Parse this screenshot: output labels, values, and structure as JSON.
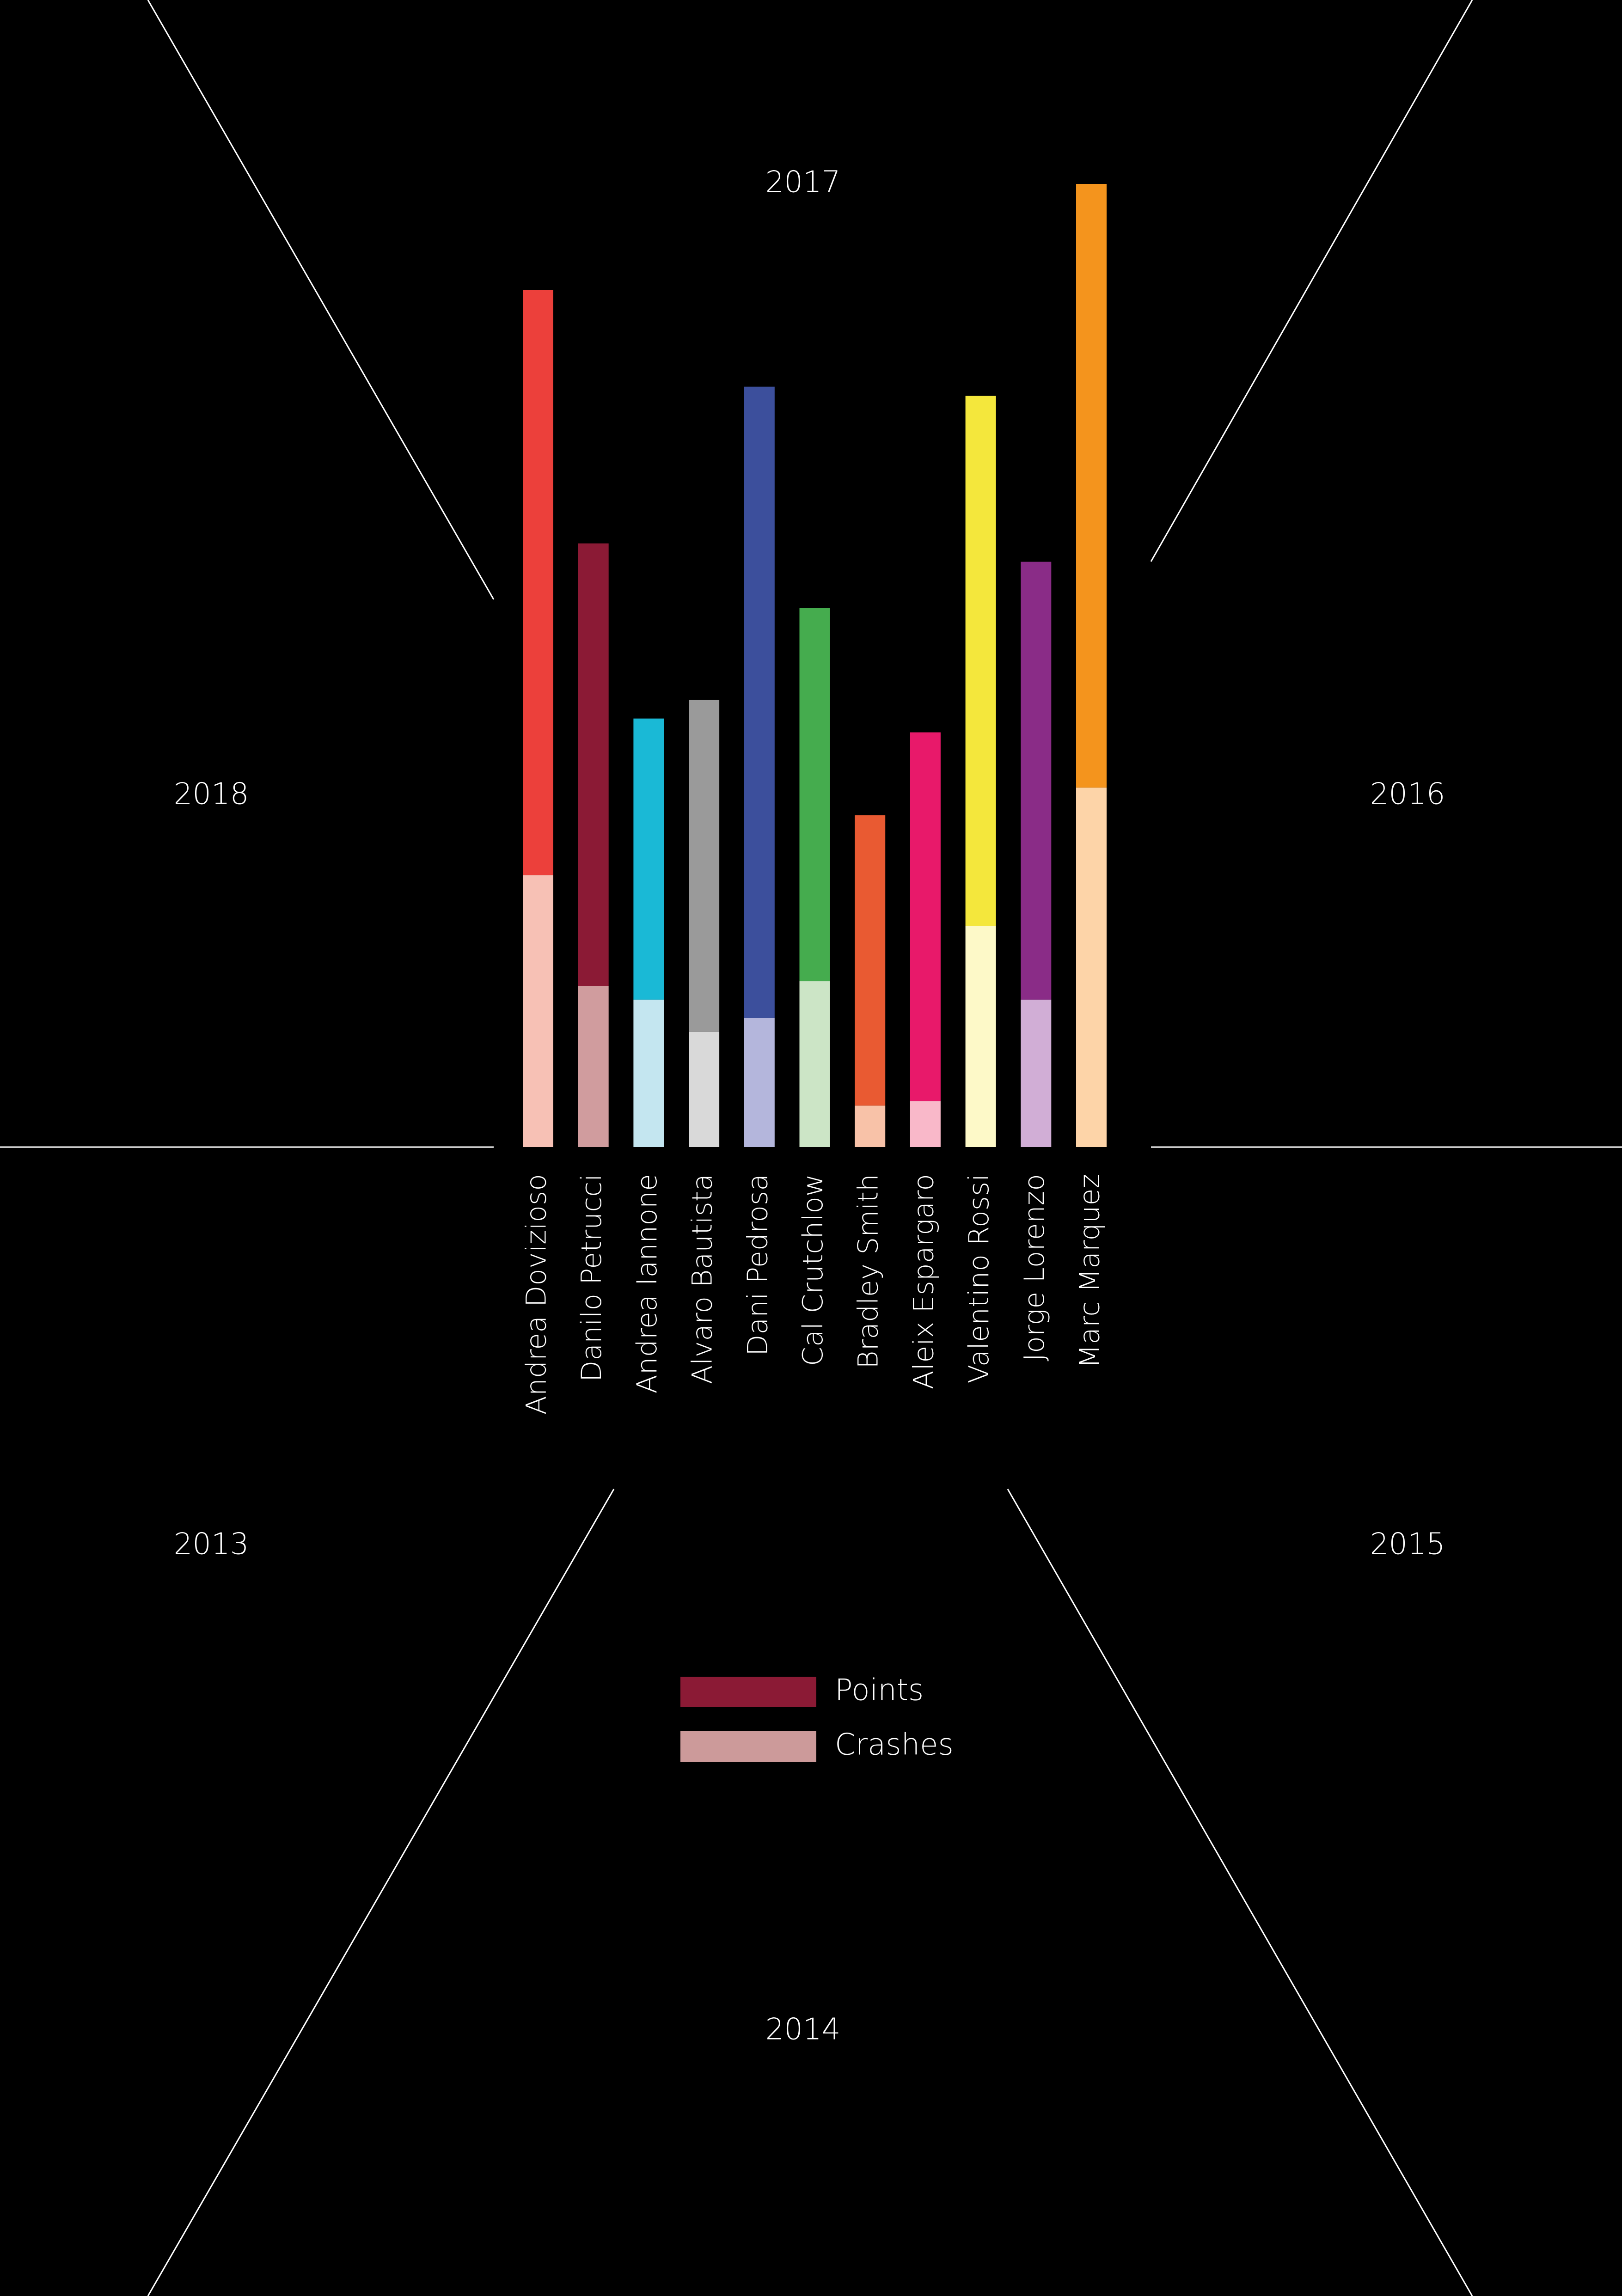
{
  "years": {
    "top": "2017",
    "left_upper": "2018",
    "right_upper": "2016",
    "left_lower": "2013",
    "right_lower": "2015",
    "bottom": "2014"
  },
  "legend": {
    "points_label": "Points",
    "crashes_label": "Crashes",
    "points_color": "#8b1a35",
    "crashes_color": "#cc9a9a"
  },
  "chart_data": {
    "type": "bar",
    "stacked": true,
    "categories": [
      "Andrea Dovizioso",
      "Danilo Petrucci",
      "Andrea Iannone",
      "Alvaro Bautista",
      "Dani Pedrosa",
      "Cal Crutchlow",
      "Bradley Smith",
      "Aleix Espargaro",
      "Valentino Rossi",
      "Jorge Lorenzo",
      "Marc Marquez"
    ],
    "series": [
      {
        "name": "Crashes",
        "values": [
          59,
          35,
          32,
          25,
          28,
          36,
          9,
          10,
          48,
          32,
          78
        ],
        "colors": [
          "#f7c1b5",
          "#d09c9e",
          "#c4e6f0",
          "#d9d9d9",
          "#b4b6dc",
          "#cce5c6",
          "#f8c2a8",
          "#f9b8c9",
          "#fdf9c8",
          "#d1aed6",
          "#fdd4a8"
        ]
      },
      {
        "name": "Points",
        "values": [
          127,
          96,
          61,
          72,
          137,
          81,
          63,
          80,
          115,
          95,
          131
        ],
        "colors": [
          "#ec403b",
          "#8b1a35",
          "#1ab9d6",
          "#9a9a9a",
          "#3c4f9c",
          "#45ac4e",
          "#e95a32",
          "#e8196a",
          "#f4e73c",
          "#8a2c87",
          "#f4941d"
        ]
      }
    ],
    "ylim": [
      0,
      209
    ]
  }
}
